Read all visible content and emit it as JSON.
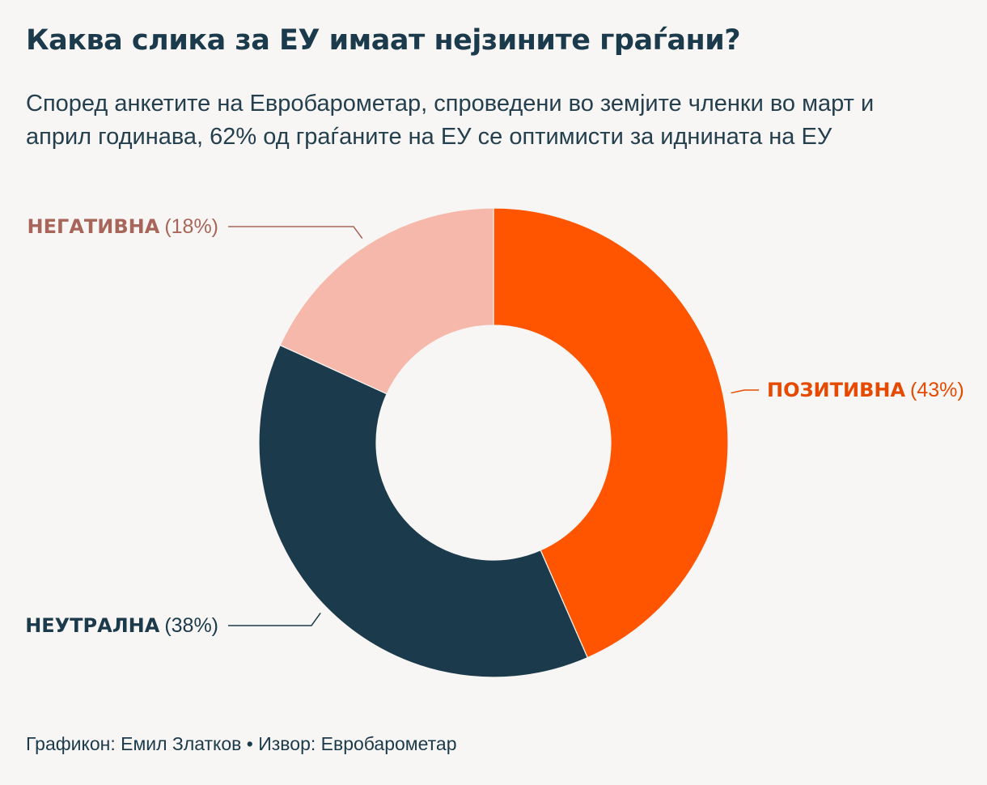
{
  "title": "Каква слика за ЕУ имаат нејзините граѓани?",
  "subtitle": "Според анкетите на Евробарометар, спроведени во земјите членки во март и април годинава, 62% од граѓаните на ЕУ се оптимисти за иднината на ЕУ",
  "footer": {
    "credit": "Графикон: Емил Златков",
    "separator": "•",
    "source": "Извор: Евробарометар"
  },
  "chart_data": {
    "type": "pie",
    "variant": "donut",
    "title": "Каква слика за ЕУ имаат нејзините граѓани?",
    "start": "top, clockwise",
    "slices": [
      {
        "key": "positive",
        "label": "ПОЗИТИВНА",
        "value": 43,
        "value_label": "(43%)",
        "color": "#ff5500",
        "label_color": "#e54a00",
        "label_side": "right"
      },
      {
        "key": "neutral",
        "label": "НЕУТРАЛНА",
        "value": 38,
        "value_label": "(38%)",
        "color": "#1b3a4b",
        "label_color": "#1b3a4b",
        "label_side": "left"
      },
      {
        "key": "negative",
        "label": "НЕГАТИВНА",
        "value": 18,
        "value_label": "(18%)",
        "color": "#f5b8aa",
        "label_color": "#a8665a",
        "label_side": "left"
      }
    ]
  }
}
